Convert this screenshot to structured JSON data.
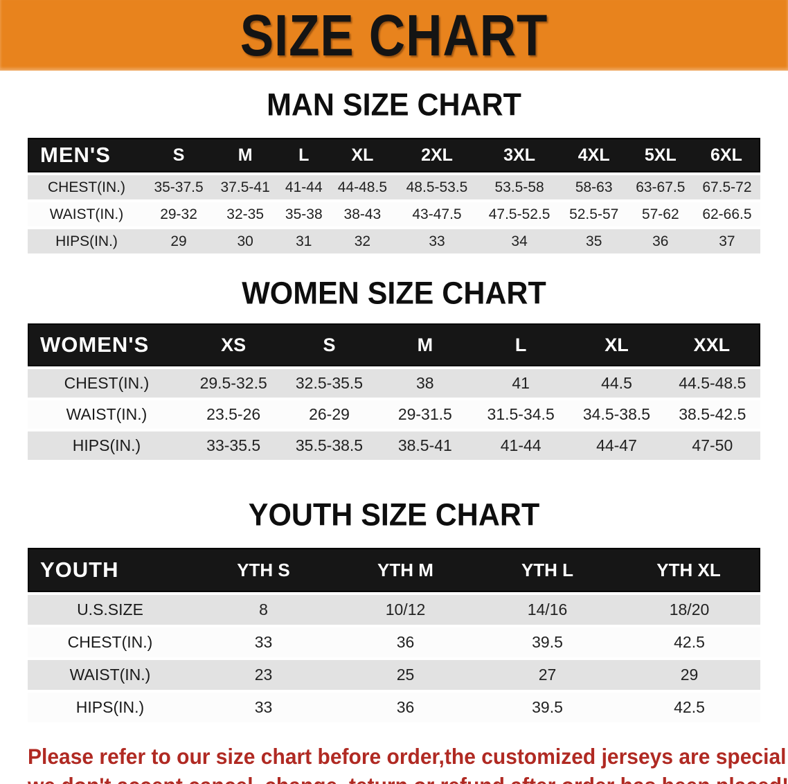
{
  "banner": {
    "title": "SIZE CHART",
    "bg_color": "#E8831D",
    "text_color": "#141414"
  },
  "sections": [
    {
      "key": "men",
      "heading": "MAN SIZE CHART",
      "table": {
        "group_label": "MEN'S",
        "columns": [
          "S",
          "M",
          "L",
          "XL",
          "2XL",
          "3XL",
          "4XL",
          "5XL",
          "6XL"
        ],
        "rows": [
          {
            "label": "CHEST(IN.)",
            "values": [
              "35-37.5",
              "37.5-41",
              "41-44",
              "44-48.5",
              "48.5-53.5",
              "53.5-58",
              "58-63",
              "63-67.5",
              "67.5-72"
            ]
          },
          {
            "label": "WAIST(IN.)",
            "values": [
              "29-32",
              "32-35",
              "35-38",
              "38-43",
              "43-47.5",
              "47.5-52.5",
              "52.5-57",
              "57-62",
              "62-66.5"
            ]
          },
          {
            "label": "HIPS(IN.)",
            "values": [
              "29",
              "30",
              "31",
              "32",
              "33",
              "34",
              "35",
              "36",
              "37"
            ]
          }
        ]
      }
    },
    {
      "key": "women",
      "heading": "WOMEN SIZE CHART",
      "table": {
        "group_label": "WOMEN'S",
        "columns": [
          "XS",
          "S",
          "M",
          "L",
          "XL",
          "XXL"
        ],
        "rows": [
          {
            "label": "CHEST(IN.)",
            "values": [
              "29.5-32.5",
              "32.5-35.5",
              "38",
              "41",
              "44.5",
              "44.5-48.5"
            ]
          },
          {
            "label": "WAIST(IN.)",
            "values": [
              "23.5-26",
              "26-29",
              "29-31.5",
              "31.5-34.5",
              "34.5-38.5",
              "38.5-42.5"
            ]
          },
          {
            "label": "HIPS(IN.)",
            "values": [
              "33-35.5",
              "35.5-38.5",
              "38.5-41",
              "41-44",
              "44-47",
              "47-50"
            ]
          }
        ]
      }
    },
    {
      "key": "youth",
      "heading": "YOUTH SIZE CHART",
      "table": {
        "group_label": "YOUTH",
        "columns": [
          "YTH S",
          "YTH M",
          "YTH L",
          "YTH XL"
        ],
        "rows": [
          {
            "label": "U.S.SIZE",
            "values": [
              "8",
              "10/12",
              "14/16",
              "18/20"
            ]
          },
          {
            "label": "CHEST(IN.)",
            "values": [
              "33",
              "36",
              "39.5",
              "42.5"
            ]
          },
          {
            "label": "WAIST(IN.)",
            "values": [
              "23",
              "25",
              "27",
              "29"
            ]
          },
          {
            "label": "HIPS(IN.)",
            "values": [
              "33",
              "36",
              "39.5",
              "42.5"
            ]
          }
        ]
      }
    }
  ],
  "footer": {
    "line1": "Please refer to our size chart before order,the customized jerseys are special products,",
    "line2": "we don't accept cancel, change, teturn or refund after order has been placed!",
    "text_color": "#B02A23"
  }
}
